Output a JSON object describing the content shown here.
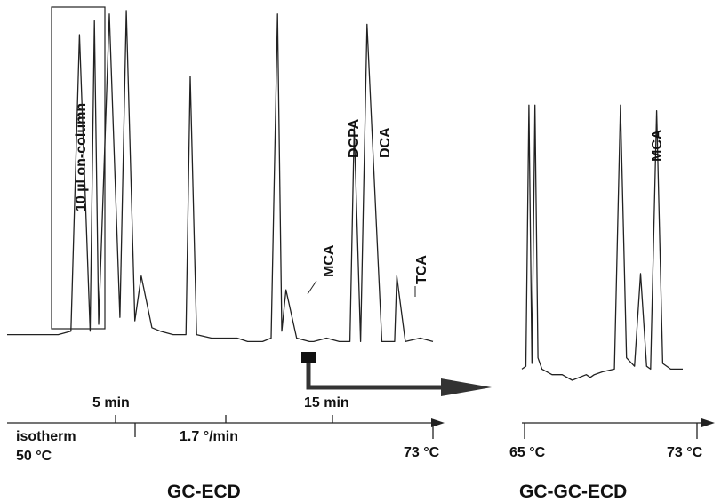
{
  "chart_data": [
    {
      "type": "line",
      "title": "GC-ECD",
      "injection_label": "10 µl on-column",
      "peak_labels": [
        "MCA",
        "DCPA",
        "DCA",
        "TCA"
      ],
      "time_axis": {
        "ticks": [
          "5 min",
          "15 min"
        ],
        "range_min": [
          0,
          20
        ]
      },
      "temperature_axis": {
        "program": [
          "isotherm",
          "1.7 °/min"
        ],
        "start_label": "50 °C",
        "end_label": "73 °C"
      },
      "series": [
        {
          "x_min": [
            0,
            2.4,
            3.0,
            3.4,
            3.9,
            4.1,
            4.3,
            4.8,
            5.3,
            5.6,
            6.0,
            6.3,
            6.8,
            7.2,
            7.8,
            8.4,
            8.6,
            8.9,
            9.6,
            10.3,
            10.8,
            11.3,
            12.0,
            12.4,
            12.7,
            12.9,
            13.1,
            13.6,
            14.2,
            14.4,
            15.0,
            15.6,
            16.1,
            16.3,
            16.6,
            16.9,
            17.6,
            18.2,
            18.3,
            18.7,
            19.4,
            20.0
          ],
          "y_response": [
            5,
            5,
            6,
            92,
            6,
            96,
            8,
            98,
            10,
            99,
            9,
            22,
            7,
            6,
            5,
            5,
            80,
            5,
            4,
            4,
            4,
            3,
            3,
            4,
            98,
            6,
            18,
            4,
            3,
            3,
            4,
            3,
            3,
            65,
            3,
            95,
            3,
            3,
            22,
            3,
            4,
            3
          ]
        }
      ]
    },
    {
      "type": "line",
      "title": "GC-GC-ECD",
      "peak_labels": [
        "MCA"
      ],
      "temperature_axis": {
        "start_label": "65 °C",
        "end_label": "73 °C"
      },
      "series": [
        {
          "x_c": [
            65,
            65.2,
            65.35,
            65.5,
            65.65,
            65.8,
            66.0,
            66.5,
            67.0,
            67.5,
            68.2,
            68.4,
            68.6,
            69.0,
            69.6,
            69.9,
            70.2,
            70.6,
            70.9,
            71.2,
            71.4,
            71.7,
            72.0,
            72.4,
            73.0
          ],
          "y_response": [
            4,
            5,
            98,
            6,
            98,
            8,
            4,
            2,
            2,
            0,
            2,
            1,
            2,
            3,
            4,
            98,
            8,
            5,
            38,
            5,
            4,
            96,
            6,
            4,
            4
          ]
        }
      ]
    }
  ]
}
